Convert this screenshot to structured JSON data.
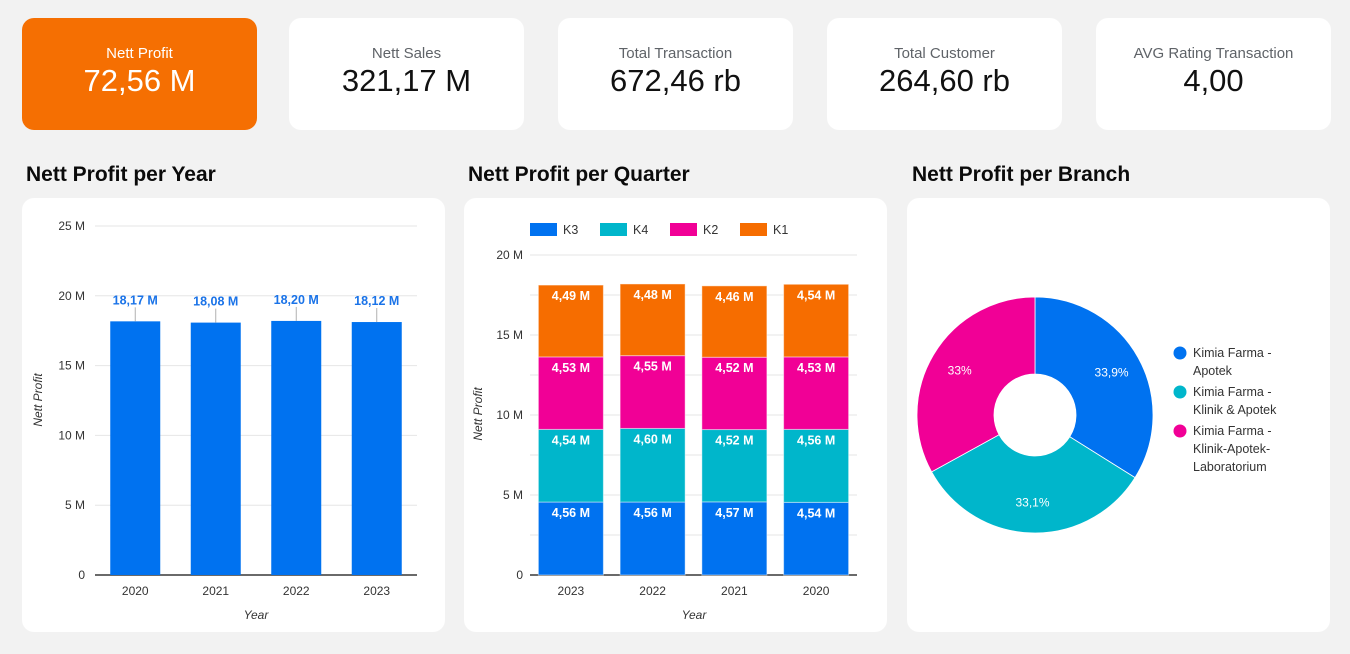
{
  "kpis": [
    {
      "label": "Nett Profit",
      "value": "72,56 M",
      "accent": true
    },
    {
      "label": "Nett Sales",
      "value": "321,17 M",
      "accent": false
    },
    {
      "label": "Total Transaction",
      "value": "672,46 rb",
      "accent": false
    },
    {
      "label": "Total Customer",
      "value": "264,60 rb",
      "accent": false
    },
    {
      "label": "AVG Rating Transaction",
      "value": "4,00",
      "accent": false
    }
  ],
  "colors": {
    "accent": "#f56f02",
    "blue": "#0072f0",
    "teal": "#00b6cb",
    "magenta": "#f10096",
    "orange": "#f66d00",
    "grid": "#e6e6e6",
    "label_blue": "#1a73e8"
  },
  "chart_data": [
    {
      "type": "bar",
      "title": "Nett Profit per Year",
      "xlabel": "Year",
      "ylabel": "Nett Profit",
      "categories": [
        "2020",
        "2021",
        "2022",
        "2023"
      ],
      "values": [
        18.17,
        18.08,
        18.2,
        18.12
      ],
      "data_labels": [
        "18,17 M",
        "18,08 M",
        "18,20 M",
        "18,12 M"
      ],
      "unit": "M",
      "ylim": [
        0,
        25
      ],
      "yticks": [
        0,
        5,
        10,
        15,
        20,
        25
      ],
      "ytick_labels": [
        "0",
        "5 M",
        "10 M",
        "15 M",
        "20 M",
        "25 M"
      ],
      "grid": true,
      "legend": "none"
    },
    {
      "type": "bar",
      "stacked": true,
      "title": "Nett Profit per Quarter",
      "xlabel": "Year",
      "ylabel": "Nett Profit",
      "categories": [
        "2023",
        "2022",
        "2021",
        "2020"
      ],
      "series": [
        {
          "name": "K3",
          "values": [
            4.56,
            4.56,
            4.57,
            4.54
          ],
          "labels": [
            "4,56 M",
            "4,56 M",
            "4,57 M",
            "4,54 M"
          ]
        },
        {
          "name": "K4",
          "values": [
            4.54,
            4.6,
            4.52,
            4.56
          ],
          "labels": [
            "4,54 M",
            "4,60 M",
            "4,52 M",
            "4,56 M"
          ]
        },
        {
          "name": "K2",
          "values": [
            4.53,
            4.55,
            4.52,
            4.53
          ],
          "labels": [
            "4,53 M",
            "4,55 M",
            "4,52 M",
            "4,53 M"
          ]
        },
        {
          "name": "K1",
          "values": [
            4.49,
            4.48,
            4.46,
            4.54
          ],
          "labels": [
            "4,49 M",
            "4,48 M",
            "4,46 M",
            "4,54 M"
          ]
        }
      ],
      "ylim": [
        0,
        20
      ],
      "yticks": [
        0,
        5,
        10,
        15,
        20
      ],
      "ytick_labels": [
        "0",
        "5 M",
        "10 M",
        "15 M",
        "20 M"
      ],
      "minor_grid_step": 2.5,
      "grid": true,
      "legend": "top-left"
    },
    {
      "type": "pie",
      "donut": true,
      "title": "Nett Profit per Branch",
      "slices": [
        {
          "name": "Kimia Farma - Apotek",
          "value": 33.9,
          "label": "33,9%"
        },
        {
          "name": "Kimia Farma - Klinik & Apotek",
          "value": 33.1,
          "label": "33,1%"
        },
        {
          "name": "Kimia Farma - Klinik-Apotek-Laboratorium",
          "value": 33.0,
          "label": "33%"
        }
      ],
      "legend_lines": [
        [
          "Kimia Farma -",
          "Apotek"
        ],
        [
          "Kimia Farma -",
          "Klinik & Apotek"
        ],
        [
          "Kimia Farma -",
          "Klinik-Apotek-",
          "Laboratorium"
        ]
      ],
      "legend": "right"
    }
  ]
}
